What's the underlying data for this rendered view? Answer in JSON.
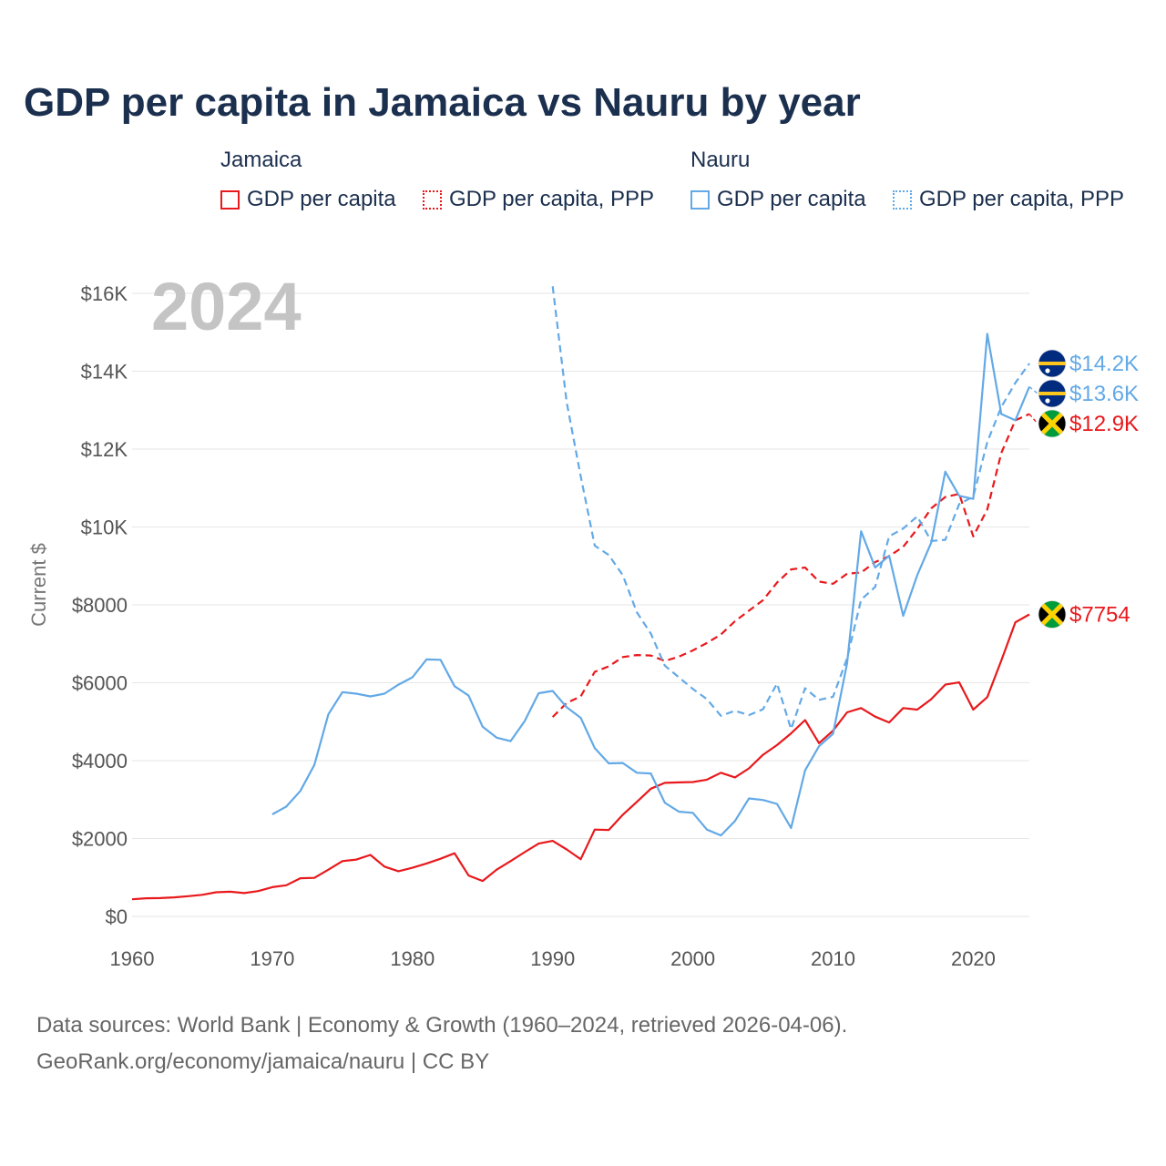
{
  "title": "GDP per capita in Jamaica vs Nauru by year",
  "legend": {
    "groups": [
      {
        "name": "Jamaica",
        "items": [
          {
            "label": "GDP per capita",
            "style": "solid",
            "color": "#e8191c"
          },
          {
            "label": "GDP per capita, PPP",
            "style": "dotted",
            "color": "#e8191c"
          }
        ]
      },
      {
        "name": "Nauru",
        "items": [
          {
            "label": "GDP per capita",
            "style": "solid",
            "color": "#63a9e6"
          },
          {
            "label": "GDP per capita, PPP",
            "style": "dotted",
            "color": "#63a9e6"
          }
        ]
      }
    ]
  },
  "sources": [
    "Data sources: World Bank | Economy & Growth (1960–2024, retrieved 2026-04-06).",
    "GeoRank.org/economy/jamaica/nauru | CC BY"
  ],
  "chart_data": {
    "type": "line",
    "year_label": "2024",
    "ylabel": "Current $",
    "xlim": [
      1960,
      2024
    ],
    "ylim": [
      0,
      16000
    ],
    "grid": true,
    "x_ticks": [
      1960,
      1970,
      1980,
      1990,
      2000,
      2010,
      2020
    ],
    "x_tick_labels": [
      "1960",
      "1970",
      "1980",
      "1990",
      "2000",
      "2010",
      "2020"
    ],
    "y_ticks": [
      0,
      2000,
      4000,
      6000,
      8000,
      10000,
      12000,
      14000,
      16000
    ],
    "y_tick_labels": [
      "$0",
      "$2000",
      "$4000",
      "$6000",
      "$8000",
      "$10K",
      "$12K",
      "$14K",
      "$16K"
    ],
    "series": [
      {
        "name": "Jamaica GDP per capita",
        "country": "Jamaica",
        "style": "solid",
        "color": "#e8191c",
        "end_label": "$7754",
        "x": [
          1960,
          1961,
          1962,
          1963,
          1964,
          1965,
          1966,
          1967,
          1968,
          1969,
          1970,
          1971,
          1972,
          1973,
          1974,
          1975,
          1976,
          1977,
          1978,
          1979,
          1980,
          1981,
          1982,
          1983,
          1984,
          1985,
          1986,
          1987,
          1988,
          1989,
          1990,
          1991,
          1992,
          1993,
          1994,
          1995,
          1996,
          1997,
          1998,
          1999,
          2000,
          2001,
          2002,
          2003,
          2004,
          2005,
          2006,
          2007,
          2008,
          2009,
          2010,
          2011,
          2012,
          2013,
          2014,
          2015,
          2016,
          2017,
          2018,
          2019,
          2020,
          2021,
          2022,
          2023,
          2024
        ],
        "values": [
          440,
          465,
          470,
          490,
          520,
          555,
          620,
          635,
          600,
          650,
          750,
          800,
          980,
          990,
          1200,
          1420,
          1460,
          1580,
          1280,
          1160,
          1250,
          1360,
          1480,
          1620,
          1050,
          910,
          1200,
          1420,
          1650,
          1870,
          1940,
          1720,
          1470,
          2230,
          2220,
          2610,
          2940,
          3280,
          3430,
          3440,
          3450,
          3510,
          3690,
          3570,
          3800,
          4150,
          4400,
          4700,
          5040,
          4450,
          4770,
          5240,
          5350,
          5130,
          4980,
          5350,
          5310,
          5580,
          5950,
          6010,
          5310,
          5630,
          6570,
          7550,
          7754
        ]
      },
      {
        "name": "Jamaica GDP per capita, PPP",
        "country": "Jamaica",
        "style": "dashed",
        "color": "#e8191c",
        "end_label": "$12.9K",
        "x": [
          1990,
          1991,
          1992,
          1993,
          1994,
          1995,
          1996,
          1997,
          1998,
          1999,
          2000,
          2001,
          2002,
          2003,
          2004,
          2005,
          2006,
          2007,
          2008,
          2009,
          2010,
          2011,
          2012,
          2013,
          2014,
          2015,
          2016,
          2017,
          2018,
          2019,
          2020,
          2021,
          2022,
          2023,
          2024
        ],
        "values": [
          5120,
          5480,
          5650,
          6280,
          6420,
          6660,
          6710,
          6700,
          6560,
          6670,
          6830,
          7020,
          7240,
          7580,
          7850,
          8120,
          8570,
          8910,
          8960,
          8600,
          8540,
          8800,
          8830,
          9100,
          9250,
          9490,
          9950,
          10480,
          10770,
          10850,
          9760,
          10450,
          11900,
          12740,
          12900
        ]
      },
      {
        "name": "Nauru GDP per capita",
        "country": "Nauru",
        "style": "solid",
        "color": "#63a9e6",
        "end_label": "$13.6K",
        "x": [
          1970,
          1971,
          1972,
          1973,
          1974,
          1975,
          1976,
          1977,
          1978,
          1979,
          1980,
          1981,
          1982,
          1983,
          1984,
          1985,
          1986,
          1987,
          1988,
          1989,
          1990,
          1991,
          1992,
          1993,
          1994,
          1995,
          1996,
          1997,
          1998,
          1999,
          2000,
          2001,
          2002,
          2003,
          2004,
          2005,
          2006,
          2007,
          2008,
          2009,
          2010,
          2011,
          2012,
          2013,
          2014,
          2015,
          2016,
          2017,
          2018,
          2019,
          2020,
          2021,
          2022,
          2023,
          2024
        ],
        "values": [
          2620,
          2820,
          3220,
          3890,
          5190,
          5760,
          5720,
          5650,
          5720,
          5950,
          6140,
          6600,
          6590,
          5910,
          5670,
          4870,
          4590,
          4500,
          5010,
          5730,
          5790,
          5370,
          5100,
          4320,
          3930,
          3940,
          3690,
          3670,
          2920,
          2690,
          2660,
          2230,
          2080,
          2450,
          3030,
          2990,
          2890,
          2270,
          3750,
          4370,
          4690,
          6500,
          9890,
          8960,
          9260,
          7720,
          8760,
          9600,
          11420,
          10800,
          10720,
          14960,
          12900,
          12740,
          13600
        ]
      },
      {
        "name": "Nauru GDP per capita, PPP",
        "country": "Nauru",
        "style": "dashed",
        "color": "#63a9e6",
        "end_label": "$14.2K",
        "x": [
          1990,
          1991,
          1992,
          1993,
          1994,
          1995,
          1996,
          1997,
          1998,
          1999,
          2000,
          2001,
          2002,
          2003,
          2004,
          2005,
          2006,
          2007,
          2008,
          2009,
          2010,
          2011,
          2012,
          2013,
          2014,
          2015,
          2016,
          2017,
          2018,
          2019,
          2020,
          2021,
          2022,
          2023,
          2024
        ],
        "values": [
          16180,
          13200,
          11300,
          9520,
          9280,
          8760,
          7810,
          7260,
          6440,
          6140,
          5840,
          5580,
          5150,
          5280,
          5170,
          5320,
          5980,
          4810,
          5860,
          5560,
          5640,
          6630,
          8130,
          8460,
          9760,
          9960,
          10270,
          9640,
          9670,
          10590,
          10780,
          12180,
          13080,
          13700,
          14200
        ]
      }
    ]
  }
}
